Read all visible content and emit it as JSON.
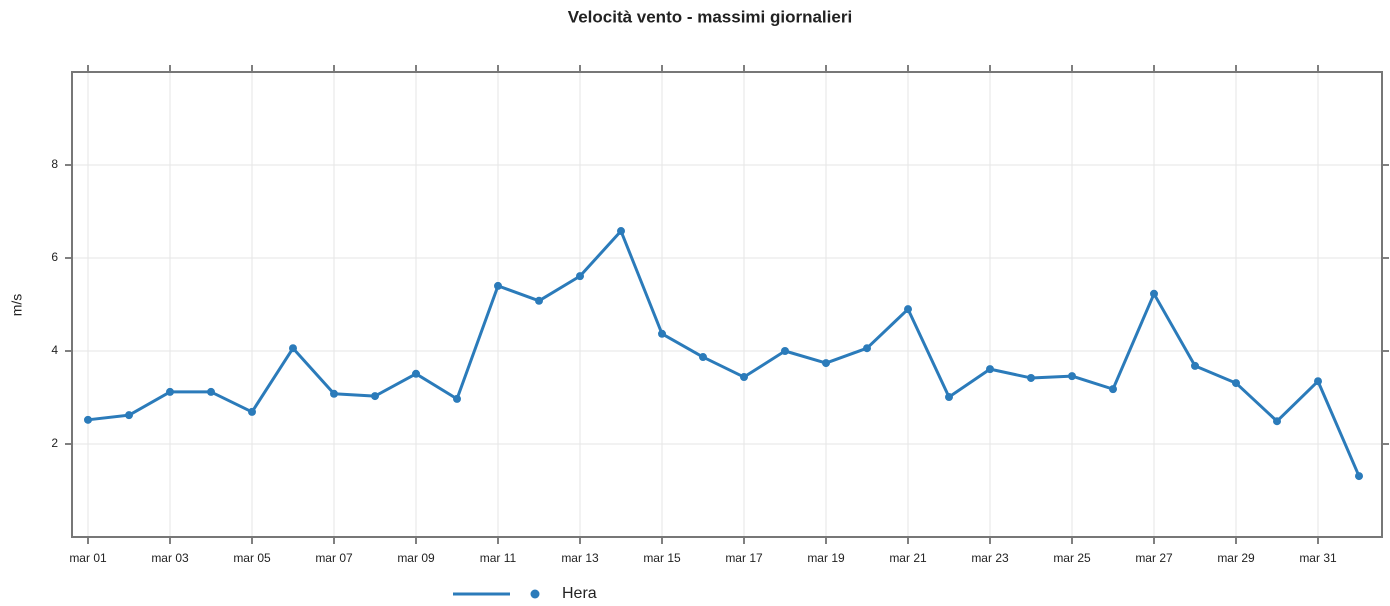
{
  "chart_data": {
    "type": "line",
    "title": "Velocità vento - massimi giornalieri",
    "y_label": "m/s",
    "categories": [
      "mar 01",
      null,
      "mar 03",
      null,
      "mar 05",
      null,
      "mar 07",
      null,
      "mar 09",
      null,
      "mar 11",
      null,
      "mar 13",
      null,
      "mar 15",
      null,
      "mar 17",
      null,
      "mar 19",
      null,
      "mar 21",
      null,
      "mar 23",
      null,
      "mar 25",
      null,
      "mar 27",
      null,
      "mar 29",
      null,
      "mar 31",
      null
    ],
    "series": [
      {
        "name": "Hera",
        "color": "#2b7bba",
        "values": [
          2.52,
          2.62,
          3.12,
          3.12,
          2.69,
          4.06,
          3.08,
          3.03,
          3.51,
          2.97,
          5.4,
          5.08,
          5.61,
          6.58,
          4.37,
          3.87,
          3.44,
          4.0,
          3.74,
          4.06,
          4.9,
          3.01,
          3.61,
          3.42,
          3.46,
          3.18,
          5.23,
          3.68,
          3.31,
          2.49,
          3.35,
          1.31
        ]
      }
    ],
    "ylim": [
      0,
      10
    ],
    "yticks": [
      2,
      4,
      6,
      8
    ],
    "grid": true,
    "legend": "bottom"
  }
}
